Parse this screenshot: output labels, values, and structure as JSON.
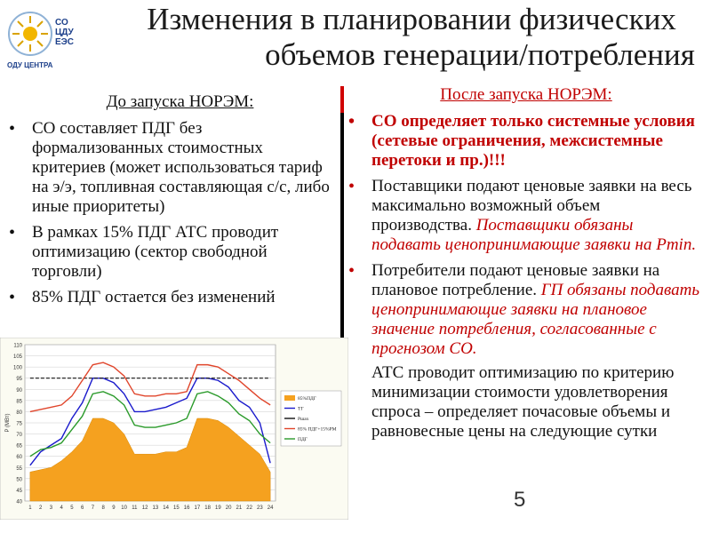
{
  "logo": {
    "text_lines": [
      "СО",
      "ЦДУ",
      "ЕЭС"
    ],
    "caption": "ОДУ ЦЕНТРА"
  },
  "title": {
    "line1": "Изменения в планировании физических",
    "line2": "объемов генерации/потребления"
  },
  "left": {
    "heading": "До запуска НОРЭМ:",
    "bullets": [
      "СО составляет ПДГ без формализованных стоимостных критериев (может использоваться тариф на э/э, топливная составляющая с/с, либо иные приоритеты)",
      "В рамках 15% ПДГ АТС проводит оптимизацию (сектор свободной торговли)",
      "85% ПДГ остается без изменений"
    ]
  },
  "right": {
    "heading": "После запуска НОРЭМ:",
    "bullet1": "СО определяет только системные условия (сетевые ограничения, межсистемные перетоки и пр.)!!!",
    "bullet2_plain": "Поставщики подают ценовые заявки на весь максимально возможный объем производства.",
    "bullet2_italic": "Поставщики обязаны подавать ценопринимающие заявки на Pmin.",
    "bullet3_plain": "Потребители подают ценовые заявки на плановое потребление.",
    "bullet3_italic": "ГП обязаны подавать ценопринимающие заявки на плановое значение потребления, согласованные с прогнозом СО.",
    "paragraph": "АТС проводит оптимизацию по критерию минимизации стоимости удовлетворения спроса – определяет почасовые объемы и равновесные цены на следующие сутки"
  },
  "page_number": "5",
  "chart_data": {
    "type": "area",
    "x": [
      1,
      2,
      3,
      4,
      5,
      6,
      7,
      8,
      9,
      10,
      11,
      12,
      13,
      14,
      15,
      16,
      17,
      18,
      19,
      20,
      21,
      22,
      23,
      24
    ],
    "ylabel": "P (МВт)",
    "ylim": [
      40,
      110
    ],
    "yticks": [
      40,
      45,
      50,
      55,
      60,
      65,
      70,
      75,
      80,
      85,
      90,
      95,
      100,
      105,
      110
    ],
    "series": [
      {
        "name": "85%ПДГ",
        "kind": "area",
        "color": "#f5a11f",
        "values": [
          53,
          54,
          55,
          58,
          62,
          67,
          77,
          77,
          75,
          70,
          61,
          61,
          61,
          62,
          62,
          64,
          77,
          77,
          76,
          73,
          69,
          65,
          61,
          53
        ]
      },
      {
        "name": "ТГ",
        "kind": "line",
        "color": "#1a1acc",
        "values": [
          56,
          62,
          65,
          68,
          77,
          84,
          95,
          95,
          93,
          88,
          80,
          80,
          81,
          82,
          84,
          86,
          95,
          95,
          94,
          91,
          85,
          82,
          75,
          57
        ]
      },
      {
        "name": "Ршах",
        "kind": "line",
        "color": "#111111",
        "values": [
          95,
          95,
          95,
          95,
          95,
          95,
          95,
          95,
          95,
          95,
          95,
          95,
          95,
          95,
          95,
          95,
          95,
          95,
          95,
          95,
          95,
          95,
          95,
          95
        ]
      },
      {
        "name": "85% ПДГ+15%РМ",
        "kind": "line",
        "color": "#e0452b",
        "values": [
          80,
          81,
          82,
          83,
          87,
          94,
          101,
          102,
          100,
          96,
          88,
          87,
          87,
          88,
          88,
          89,
          101,
          101,
          100,
          97,
          94,
          90,
          86,
          83
        ]
      },
      {
        "name": "ПДГ",
        "kind": "line",
        "color": "#2a9a2a",
        "values": [
          60,
          63,
          64,
          66,
          72,
          78,
          88,
          89,
          87,
          83,
          74,
          73,
          73,
          74,
          75,
          77,
          88,
          89,
          87,
          84,
          79,
          76,
          70,
          66
        ]
      }
    ]
  }
}
